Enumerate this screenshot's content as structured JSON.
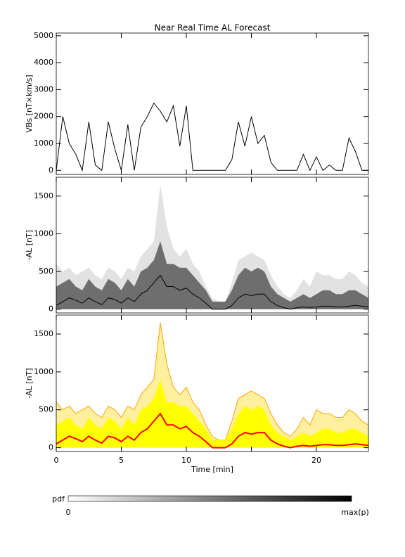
{
  "chart_data": [
    {
      "type": "line",
      "title": "Near Real Time AL Forecast",
      "ylabel": "VBs [nT×km/s]",
      "x": [
        0,
        0.5,
        1,
        1.5,
        2,
        2.5,
        3,
        3.5,
        4,
        4.5,
        5,
        5.5,
        6,
        6.5,
        7,
        7.5,
        8,
        8.5,
        9,
        9.5,
        10,
        10.5,
        11,
        11.5,
        12,
        12.5,
        13,
        13.5,
        14,
        14.5,
        15,
        15.5,
        16,
        16.5,
        17,
        17.5,
        18,
        18.5,
        19,
        19.5,
        20,
        20.5,
        21,
        21.5,
        22,
        22.5,
        23,
        23.5,
        24
      ],
      "series": [
        {
          "color": "#000000",
          "style": "line",
          "values": [
            0,
            2000,
            1000,
            600,
            0,
            1800,
            200,
            0,
            1800,
            800,
            0,
            1700,
            0,
            1600,
            2000,
            2500,
            2200,
            1800,
            2400,
            900,
            2400,
            0,
            0,
            0,
            0,
            0,
            0,
            400,
            1800,
            900,
            2000,
            1000,
            1300,
            300,
            0,
            0,
            0,
            0,
            600,
            0,
            500,
            0,
            200,
            0,
            0,
            1200,
            700,
            0,
            0
          ]
        }
      ],
      "xlim": [
        0,
        24
      ],
      "xticks": [
        0,
        5,
        10,
        15,
        20
      ],
      "ylim": [
        -150,
        5100
      ],
      "yticks": [
        0,
        1000,
        2000,
        3000,
        4000,
        5000
      ]
    },
    {
      "type": "area",
      "ylabel": "-AL [nT]",
      "x": [
        0,
        0.5,
        1,
        1.5,
        2,
        2.5,
        3,
        3.5,
        4,
        4.5,
        5,
        5.5,
        6,
        6.5,
        7,
        7.5,
        8,
        8.5,
        9,
        9.5,
        10,
        10.5,
        11,
        11.5,
        12,
        12.5,
        13,
        13.5,
        14,
        14.5,
        15,
        15.5,
        16,
        16.5,
        17,
        17.5,
        18,
        18.5,
        19,
        19.5,
        20,
        20.5,
        21,
        21.5,
        22,
        22.5,
        23,
        23.5,
        24
      ],
      "series": [
        {
          "color": "#e2e2e2",
          "style": "area",
          "values": [
            600,
            500,
            550,
            450,
            500,
            550,
            450,
            400,
            550,
            500,
            400,
            550,
            500,
            700,
            800,
            900,
            1650,
            1100,
            800,
            700,
            800,
            600,
            500,
            300,
            150,
            100,
            100,
            350,
            650,
            700,
            750,
            700,
            650,
            450,
            300,
            200,
            150,
            250,
            400,
            300,
            500,
            450,
            450,
            400,
            400,
            500,
            450,
            350,
            300
          ]
        },
        {
          "color": "#6e6e6e",
          "style": "area",
          "values": [
            300,
            350,
            400,
            300,
            250,
            400,
            300,
            250,
            400,
            350,
            250,
            400,
            300,
            500,
            550,
            650,
            900,
            600,
            600,
            550,
            550,
            450,
            350,
            250,
            100,
            100,
            100,
            250,
            450,
            550,
            500,
            550,
            500,
            300,
            200,
            150,
            100,
            150,
            200,
            150,
            200,
            250,
            250,
            200,
            200,
            250,
            250,
            200,
            150
          ]
        },
        {
          "color": "#000000",
          "style": "line",
          "values": [
            50,
            100,
            150,
            120,
            80,
            150,
            100,
            60,
            150,
            130,
            80,
            150,
            100,
            200,
            250,
            350,
            450,
            300,
            300,
            250,
            280,
            200,
            150,
            80,
            0,
            0,
            0,
            50,
            150,
            200,
            180,
            200,
            200,
            100,
            50,
            20,
            0,
            20,
            30,
            20,
            30,
            40,
            40,
            30,
            30,
            40,
            50,
            40,
            30
          ]
        }
      ],
      "xlim": [
        0,
        24
      ],
      "xticks": [
        0,
        5,
        10,
        15,
        20
      ],
      "ylim": [
        -50,
        1750
      ],
      "yticks": [
        0,
        500,
        1000,
        1500
      ]
    },
    {
      "type": "area",
      "ylabel": "-AL [nT]",
      "xlabel": "Time [min]",
      "x": [
        0,
        0.5,
        1,
        1.5,
        2,
        2.5,
        3,
        3.5,
        4,
        4.5,
        5,
        5.5,
        6,
        6.5,
        7,
        7.5,
        8,
        8.5,
        9,
        9.5,
        10,
        10.5,
        11,
        11.5,
        12,
        12.5,
        13,
        13.5,
        14,
        14.5,
        15,
        15.5,
        16,
        16.5,
        17,
        17.5,
        18,
        18.5,
        19,
        19.5,
        20,
        20.5,
        21,
        21.5,
        22,
        22.5,
        23,
        23.5,
        24
      ],
      "series": [
        {
          "color": "#fff0a0",
          "style": "area",
          "values": [
            600,
            500,
            550,
            450,
            500,
            550,
            450,
            400,
            550,
            500,
            400,
            550,
            500,
            700,
            800,
            900,
            1650,
            1100,
            800,
            700,
            800,
            600,
            500,
            300,
            150,
            100,
            100,
            350,
            650,
            700,
            750,
            700,
            650,
            450,
            300,
            200,
            150,
            250,
            400,
            300,
            500,
            450,
            450,
            400,
            400,
            500,
            450,
            350,
            300
          ]
        },
        {
          "color": "#ffa500",
          "style": "line",
          "values": [
            600,
            500,
            550,
            450,
            500,
            550,
            450,
            400,
            550,
            500,
            400,
            550,
            500,
            700,
            800,
            900,
            1650,
            1100,
            800,
            700,
            800,
            600,
            500,
            300,
            150,
            100,
            100,
            350,
            650,
            700,
            750,
            700,
            650,
            450,
            300,
            200,
            150,
            250,
            400,
            300,
            500,
            450,
            450,
            400,
            400,
            500,
            450,
            350,
            300
          ]
        },
        {
          "color": "#ffff00",
          "style": "area",
          "values": [
            300,
            350,
            400,
            300,
            250,
            400,
            300,
            250,
            400,
            350,
            250,
            400,
            300,
            500,
            550,
            650,
            900,
            600,
            600,
            550,
            550,
            450,
            350,
            250,
            100,
            100,
            100,
            250,
            450,
            550,
            500,
            550,
            500,
            300,
            200,
            150,
            100,
            150,
            200,
            150,
            200,
            250,
            250,
            200,
            200,
            250,
            250,
            200,
            150
          ]
        },
        {
          "color": "#ff0000",
          "style": "line",
          "values": [
            50,
            100,
            150,
            120,
            80,
            150,
            100,
            60,
            150,
            130,
            80,
            150,
            100,
            200,
            250,
            350,
            450,
            300,
            300,
            250,
            280,
            200,
            150,
            80,
            0,
            0,
            0,
            50,
            150,
            200,
            180,
            200,
            200,
            100,
            50,
            20,
            0,
            20,
            30,
            20,
            30,
            40,
            40,
            30,
            30,
            40,
            50,
            40,
            30
          ]
        }
      ],
      "xlim": [
        0,
        24
      ],
      "xticks": [
        0,
        5,
        10,
        {
          "value": 15,
          "label": null
        },
        20
      ],
      "ylim": [
        -50,
        1750
      ],
      "yticks": [
        0,
        500,
        1000,
        1500
      ]
    }
  ],
  "colorbar": {
    "label": "pdf",
    "min_label": "0",
    "max_label": "max(p)"
  }
}
